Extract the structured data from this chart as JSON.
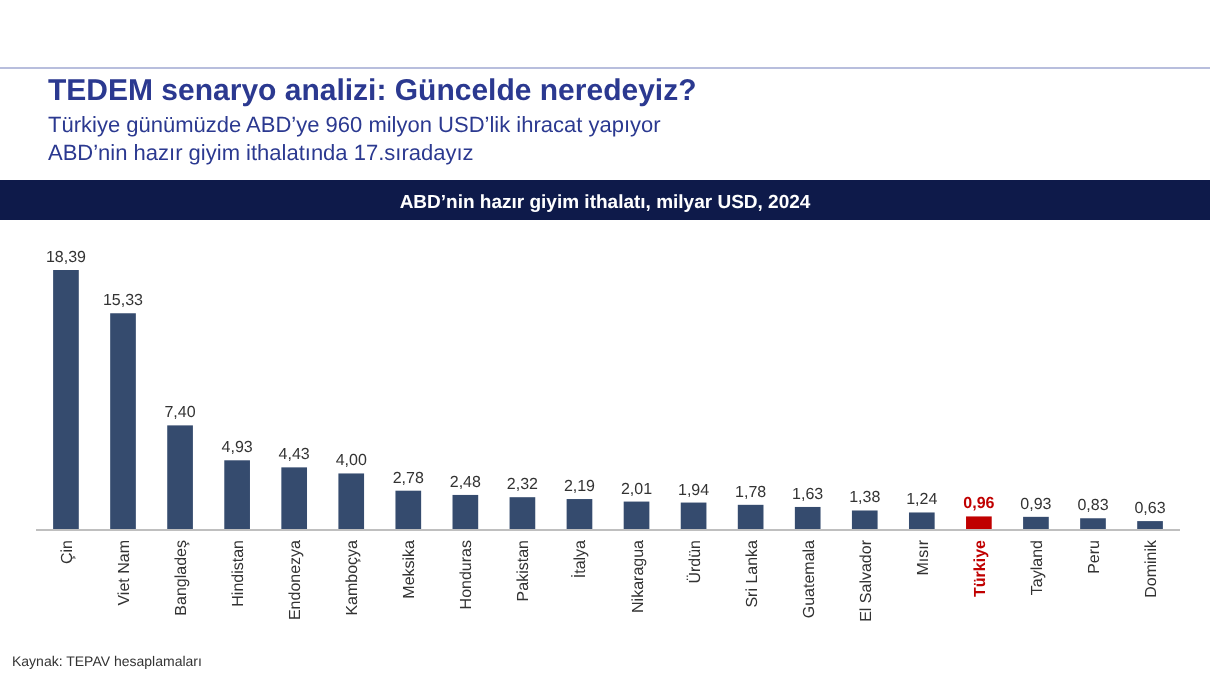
{
  "chart_data": {
    "type": "bar",
    "title": "TEDEM senaryo analizi: Güncelde neredeyiz?",
    "subtitle": "Türkiye günümüzde ABD’ye 960 milyon USD’lik ihracat yapıyor\nABD’nin hazır giyim ithalatında 17.sıradayız",
    "annotations": [
      "ABD’nin hazır giyim ithalatı, milyar USD, 2024",
      "Kaynak: TEPAV hesaplamaları"
    ],
    "categories": [
      "Çin",
      "Viet Nam",
      "Bangladeş",
      "Hindistan",
      "Endonezya",
      "Kamboçya",
      "Meksika",
      "Honduras",
      "Pakistan",
      "İtalya",
      "Nikaragua",
      "Ürdün",
      "Sri Lanka",
      "Guatemala",
      "El Salvador",
      "Mısır",
      "Türkiye",
      "Tayland",
      "Peru",
      "Dominik"
    ],
    "values": [
      18.39,
      15.33,
      7.4,
      4.93,
      4.43,
      4.0,
      2.78,
      2.48,
      2.32,
      2.19,
      2.01,
      1.94,
      1.78,
      1.63,
      1.38,
      1.24,
      0.96,
      0.93,
      0.83,
      0.63
    ],
    "value_labels": [
      "18,39",
      "15,33",
      "7,40",
      "4,93",
      "4,43",
      "4,00",
      "2,78",
      "2,48",
      "2,32",
      "2,19",
      "2,01",
      "1,94",
      "1,78",
      "1,63",
      "1,38",
      "1,24",
      "0,96",
      "0,93",
      "0,83",
      "0,63"
    ],
    "colors": [
      "#354b6e",
      "#354b6e",
      "#354b6e",
      "#354b6e",
      "#354b6e",
      "#354b6e",
      "#354b6e",
      "#354b6e",
      "#354b6e",
      "#354b6e",
      "#354b6e",
      "#354b6e",
      "#354b6e",
      "#354b6e",
      "#354b6e",
      "#354b6e",
      "#c00000",
      "#354b6e",
      "#354b6e",
      "#354b6e"
    ]
  }
}
